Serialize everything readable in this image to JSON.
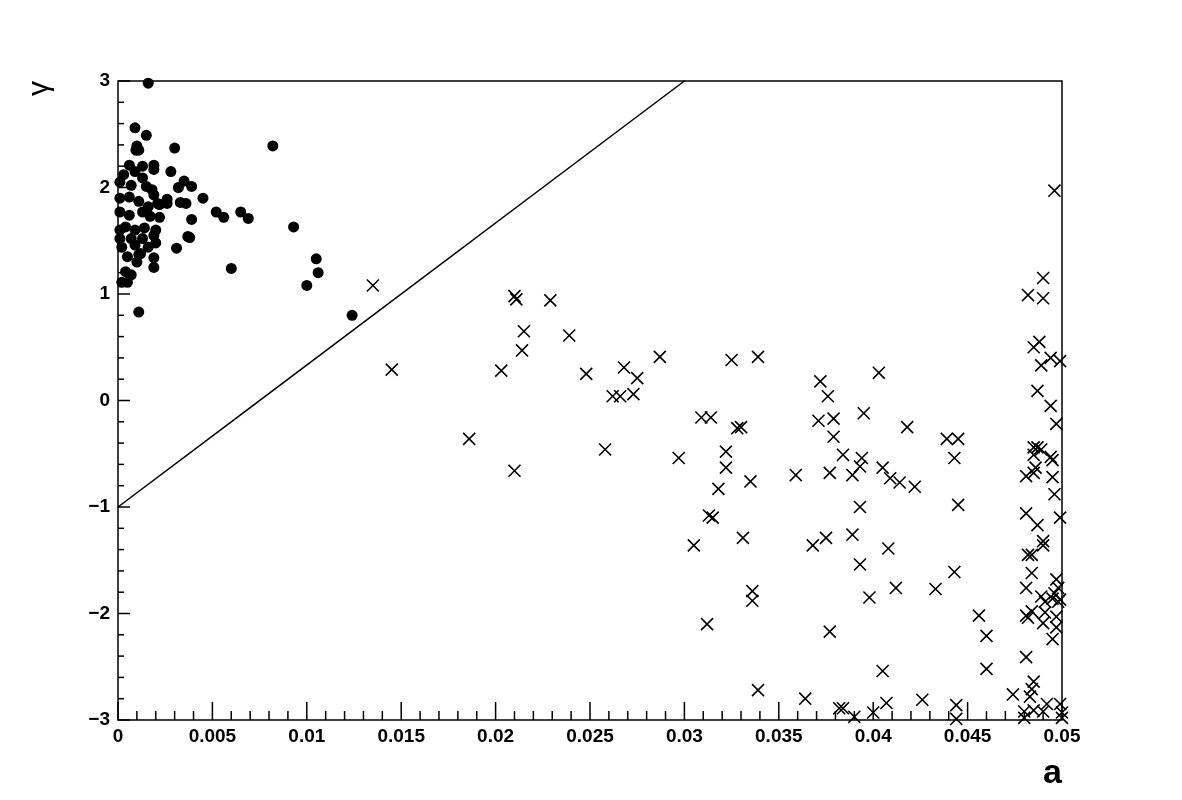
{
  "chart_data": {
    "type": "scatter",
    "xlabel": "a",
    "ylabel": "γ",
    "xlim": [
      0,
      0.05
    ],
    "ylim": [
      -3,
      3
    ],
    "grid": false,
    "xticks": [
      0,
      {
        "value": 0.001,
        "label": null
      },
      {
        "value": 0.002,
        "label": null
      },
      {
        "value": 0.003,
        "label": null
      },
      {
        "value": 0.004,
        "label": null
      },
      0.005,
      {
        "value": 0.006,
        "label": null
      },
      {
        "value": 0.007,
        "label": null
      },
      {
        "value": 0.008,
        "label": null
      },
      {
        "value": 0.009,
        "label": null
      },
      0.01,
      {
        "value": 0.011,
        "label": null
      },
      {
        "value": 0.012,
        "label": null
      },
      {
        "value": 0.013,
        "label": null
      },
      {
        "value": 0.014,
        "label": null
      },
      0.015,
      {
        "value": 0.016,
        "label": null
      },
      {
        "value": 0.017,
        "label": null
      },
      {
        "value": 0.018,
        "label": null
      },
      {
        "value": 0.019,
        "label": null
      },
      0.02,
      {
        "value": 0.021,
        "label": null
      },
      {
        "value": 0.022,
        "label": null
      },
      {
        "value": 0.023,
        "label": null
      },
      {
        "value": 0.024,
        "label": null
      },
      0.025,
      {
        "value": 0.026,
        "label": null
      },
      {
        "value": 0.027,
        "label": null
      },
      {
        "value": 0.028,
        "label": null
      },
      {
        "value": 0.029,
        "label": null
      },
      0.03,
      {
        "value": 0.031,
        "label": null
      },
      {
        "value": 0.032,
        "label": null
      },
      {
        "value": 0.033,
        "label": null
      },
      {
        "value": 0.034,
        "label": null
      },
      0.035,
      {
        "value": 0.036,
        "label": null
      },
      {
        "value": 0.037,
        "label": null
      },
      {
        "value": 0.038,
        "label": null
      },
      {
        "value": 0.039,
        "label": null
      },
      0.04,
      {
        "value": 0.041,
        "label": null
      },
      {
        "value": 0.042,
        "label": null
      },
      {
        "value": 0.043,
        "label": null
      },
      {
        "value": 0.044,
        "label": null
      },
      0.045,
      {
        "value": 0.046,
        "label": null
      },
      {
        "value": 0.047,
        "label": null
      },
      {
        "value": 0.048,
        "label": null
      },
      {
        "value": 0.049,
        "label": null
      },
      0.05
    ],
    "yticks": [
      {
        "value": -3,
        "label": "−3"
      },
      {
        "value": -2.8,
        "label": null
      },
      {
        "value": -2.6,
        "label": null
      },
      {
        "value": -2.4,
        "label": null
      },
      {
        "value": -2.2,
        "label": null
      },
      {
        "value": -2,
        "label": "−2"
      },
      {
        "value": -1.8,
        "label": null
      },
      {
        "value": -1.6,
        "label": null
      },
      {
        "value": -1.4,
        "label": null
      },
      {
        "value": -1.2,
        "label": null
      },
      {
        "value": -1,
        "label": "−1"
      },
      {
        "value": -0.8,
        "label": null
      },
      {
        "value": -0.6,
        "label": null
      },
      {
        "value": -0.4,
        "label": null
      },
      {
        "value": -0.2,
        "label": null
      },
      0,
      {
        "value": 0.2,
        "label": null
      },
      {
        "value": 0.4,
        "label": null
      },
      {
        "value": 0.6,
        "label": null
      },
      {
        "value": 0.8,
        "label": null
      },
      1,
      {
        "value": 1.2,
        "label": null
      },
      {
        "value": 1.4,
        "label": null
      },
      {
        "value": 1.6,
        "label": null
      },
      {
        "value": 1.8,
        "label": null
      },
      2,
      {
        "value": 2.2,
        "label": null
      },
      {
        "value": 2.4,
        "label": null
      },
      {
        "value": 2.6,
        "label": null
      },
      {
        "value": 2.8,
        "label": null
      },
      3
    ],
    "series": [
      {
        "color": "#000000",
        "marker": "circle",
        "x": [
          0.0016,
          0.0009,
          0.0015,
          0.001,
          0.00095,
          0.0011,
          0.003,
          0.0082,
          0.0006,
          0.0013,
          0.0019,
          0.0019,
          0.0028,
          0.0003,
          0.0009,
          0.0035,
          0.0039,
          0.0032,
          0.0045,
          0.0026,
          0.0026,
          0.0033,
          0.0036,
          0.0052,
          0.0056,
          0.0065,
          0.0069,
          0.0039,
          0.0022,
          0.0093,
          0.0037,
          0.0038,
          0.0031,
          0.006,
          0.0105,
          0.0106,
          0.01,
          0.0124,
          0.0011,
          0.0019,
          0.0019,
          0.0005,
          0.001,
          0.0011,
          0.0004,
          0.0007,
          0.0002,
          0.0005,
          0.0001,
          0.0007,
          0.0013,
          0.0015,
          0.0018,
          0.0019,
          0.0021,
          0.0001,
          0.0006,
          0.0011,
          0.0016,
          0.0022,
          0.0001,
          0.0006,
          0.0013,
          0.0017,
          0.0001,
          0.0004,
          0.0009,
          0.0014,
          0.002,
          0.0001,
          0.0007,
          0.0013,
          0.0019,
          0.0002,
          0.0009,
          0.0016,
          0.002,
          0.0012
        ],
        "values": [
          2.98,
          2.56,
          2.49,
          2.39,
          2.35,
          2.35,
          2.37,
          2.39,
          2.21,
          2.2,
          2.21,
          2.17,
          2.15,
          2.12,
          2.15,
          2.06,
          2.01,
          2.0,
          1.9,
          1.89,
          1.85,
          1.86,
          1.85,
          1.77,
          1.72,
          1.77,
          1.71,
          1.7,
          1.72,
          1.63,
          1.54,
          1.53,
          1.43,
          1.24,
          1.33,
          1.2,
          1.08,
          0.8,
          0.83,
          1.25,
          1.34,
          1.35,
          1.3,
          1.37,
          1.21,
          1.18,
          1.11,
          1.11,
          2.05,
          2.02,
          2.09,
          2.01,
          1.98,
          1.93,
          1.85,
          1.9,
          1.91,
          1.87,
          1.82,
          1.84,
          1.77,
          1.74,
          1.77,
          1.73,
          1.6,
          1.63,
          1.6,
          1.62,
          1.6,
          1.52,
          1.52,
          1.52,
          1.55,
          1.44,
          1.46,
          1.44,
          1.48,
          1.38
        ]
      },
      {
        "color": "#000000",
        "marker": "cross",
        "x": [
          0.0135,
          0.0145,
          0.0186,
          0.0203,
          0.021,
          0.0211,
          0.021,
          0.0214,
          0.0215,
          0.0229,
          0.0239,
          0.0248,
          0.0258,
          0.0262,
          0.0266,
          0.0268,
          0.0273,
          0.0275,
          0.0287,
          0.0297,
          0.0305,
          0.0309,
          0.0314,
          0.0312,
          0.0313,
          0.0315,
          0.0318,
          0.0322,
          0.0322,
          0.0325,
          0.0328,
          0.033,
          0.0331,
          0.0335,
          0.0336,
          0.0336,
          0.0339,
          0.0339,
          0.0403,
          0.0372,
          0.0376,
          0.0371,
          0.0379,
          0.0395,
          0.0418,
          0.0439,
          0.0445,
          0.0379,
          0.0384,
          0.0394,
          0.0393,
          0.0405,
          0.0409,
          0.0414,
          0.0422,
          0.0443,
          0.0359,
          0.0377,
          0.0389,
          0.0445,
          0.0393,
          0.0368,
          0.0375,
          0.0389,
          0.0408,
          0.0393,
          0.0443,
          0.0412,
          0.0433,
          0.0398,
          0.0377,
          0.0405,
          0.0364,
          0.0382,
          0.0384,
          0.039,
          0.04,
          0.0407,
          0.0426,
          0.0444,
          0.0444,
          0.0496,
          0.049,
          0.0482,
          0.049,
          0.0485,
          0.0488,
          0.0489,
          0.0494,
          0.0499,
          0.0487,
          0.0494,
          0.0497,
          0.0485,
          0.0487,
          0.0489,
          0.0485,
          0.0494,
          0.0495,
          0.0481,
          0.0485,
          0.0486,
          0.0495,
          0.0496,
          0.0481,
          0.0487,
          0.0499,
          0.049,
          0.049,
          0.0482,
          0.0484,
          0.0484,
          0.0481,
          0.0497,
          0.0498,
          0.0496,
          0.0489,
          0.0495,
          0.0498,
          0.0499,
          0.0491,
          0.0481,
          0.0484,
          0.0482,
          0.0491,
          0.049,
          0.0497,
          0.0497,
          0.0495,
          0.0456,
          0.046,
          0.046,
          0.0481,
          0.0485,
          0.0484,
          0.0474,
          0.0483,
          0.048,
          0.048,
          0.0485,
          0.049,
          0.0492,
          0.0499,
          0.05,
          0.05
        ],
        "values": [
          1.08,
          0.29,
          -0.36,
          0.28,
          0.98,
          0.95,
          -0.66,
          0.47,
          0.65,
          0.94,
          0.61,
          0.25,
          -0.46,
          0.04,
          0.04,
          0.31,
          0.06,
          0.21,
          0.41,
          -0.54,
          -1.36,
          -0.16,
          -0.16,
          -2.1,
          -1.08,
          -1.1,
          -0.83,
          -0.63,
          -0.48,
          0.38,
          -0.26,
          -0.25,
          -1.29,
          -0.76,
          -1.79,
          -1.88,
          -2.72,
          0.41,
          0.26,
          0.18,
          0.04,
          -0.19,
          -0.17,
          -0.12,
          -0.25,
          -0.36,
          -0.36,
          -0.34,
          -0.51,
          -0.54,
          -0.62,
          -0.63,
          -0.73,
          -0.77,
          -0.81,
          -0.54,
          -0.7,
          -0.68,
          -0.7,
          -0.98,
          -1.0,
          -1.36,
          -1.29,
          -1.26,
          -1.39,
          -1.54,
          -1.61,
          -1.76,
          -1.77,
          -1.85,
          -2.17,
          -2.54,
          -2.8,
          -2.89,
          -2.89,
          -2.97,
          -2.93,
          -2.84,
          -2.81,
          -2.86,
          -2.99,
          1.97,
          1.15,
          0.99,
          0.96,
          0.5,
          0.55,
          0.33,
          0.4,
          0.37,
          0.09,
          -0.05,
          -0.22,
          -0.44,
          -0.44,
          -0.46,
          -0.51,
          -0.53,
          -0.56,
          -0.71,
          -0.68,
          -0.63,
          -0.72,
          -0.88,
          -1.06,
          -1.17,
          -1.1,
          -1.32,
          -1.36,
          -1.45,
          -1.45,
          -1.62,
          -1.76,
          -1.68,
          -1.76,
          -1.81,
          -1.84,
          -1.86,
          -1.89,
          -1.87,
          -1.89,
          -2.02,
          -1.98,
          -2.04,
          -1.99,
          -2.09,
          -2.03,
          -2.13,
          -2.24,
          -2.02,
          -2.21,
          -2.52,
          -2.41,
          -2.64,
          -2.71,
          -2.76,
          -2.78,
          -2.92,
          -2.98,
          -2.91,
          -2.92,
          -2.85,
          -2.85,
          -2.93,
          -2.98
        ]
      },
      {
        "type": "line",
        "color": "#000000",
        "marker": "none",
        "line_style": "solid",
        "x": [
          0,
          0.03
        ],
        "values": [
          -1,
          3
        ]
      }
    ]
  }
}
